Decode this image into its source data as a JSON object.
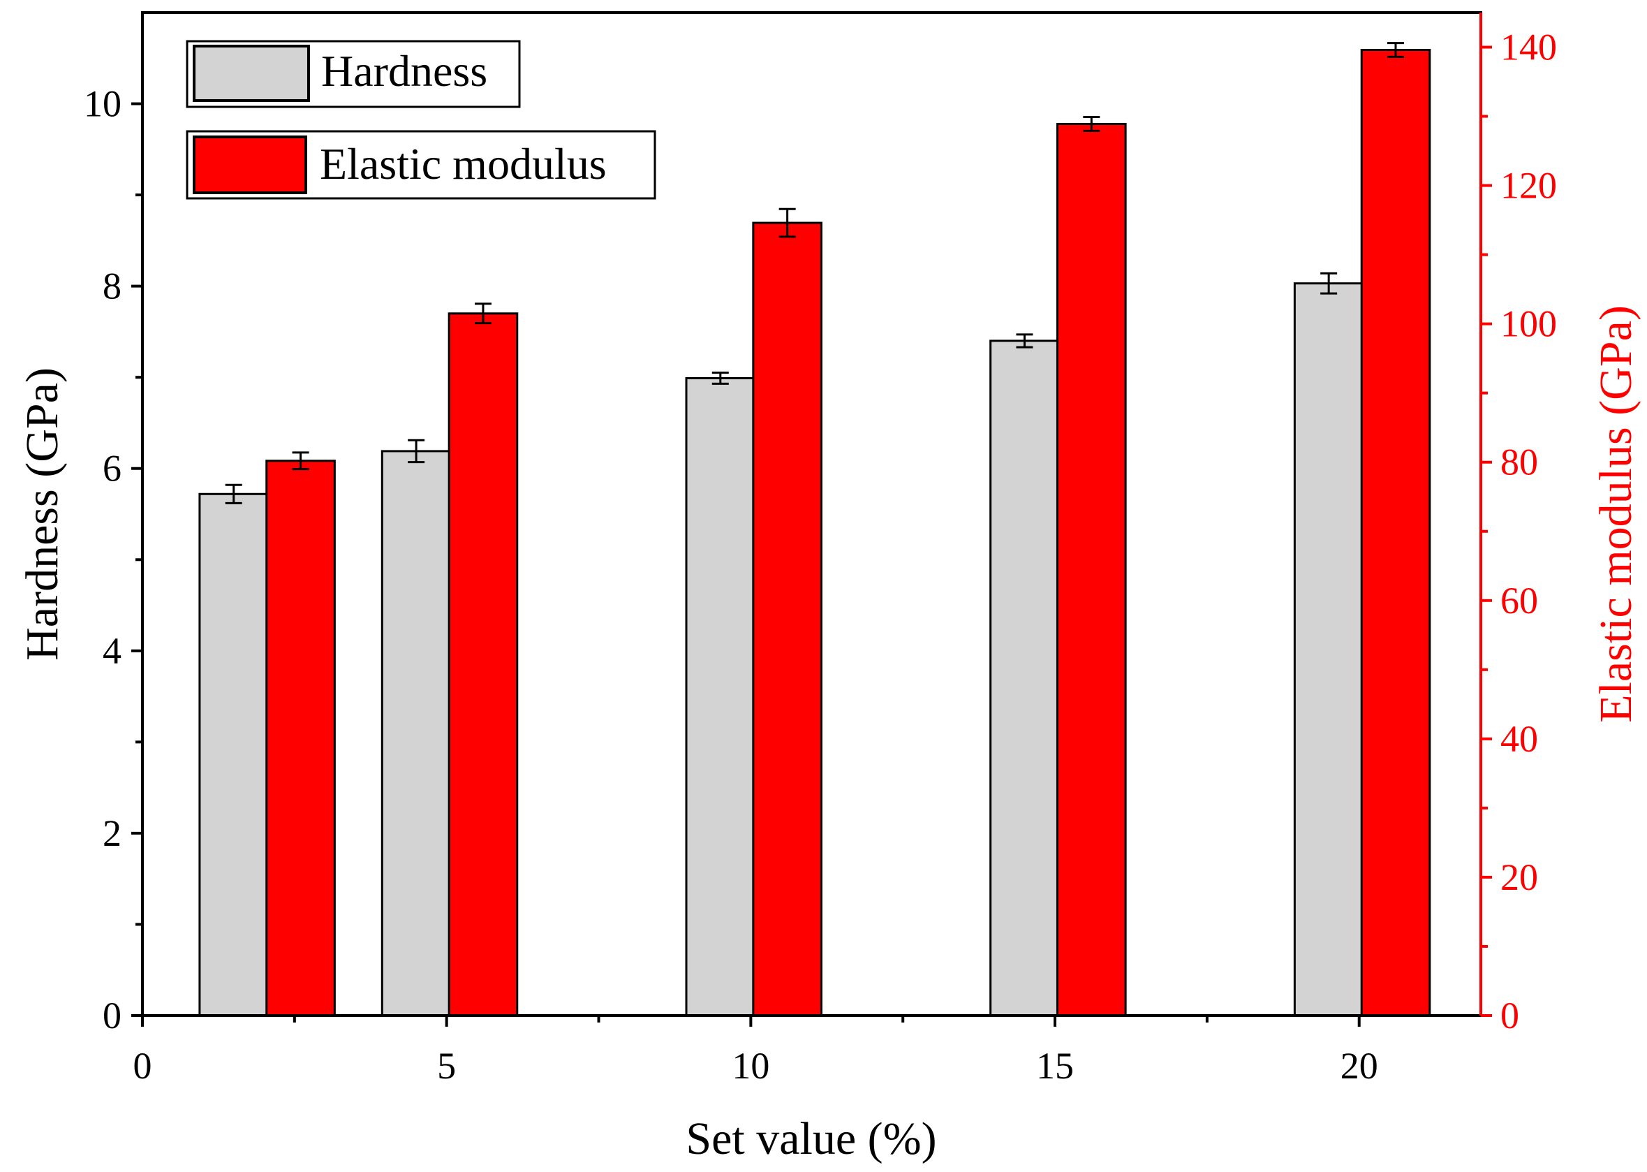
{
  "chart_data": {
    "type": "bar",
    "xlabel": "Set value (%)",
    "ylabel": "Hardness (GPa)",
    "y2label": "Elastic modulus (GPa)",
    "xlim": [
      0,
      22
    ],
    "ylim": [
      0,
      11
    ],
    "y2lim": [
      0,
      145
    ],
    "xticks": [
      0,
      5,
      10,
      15,
      20
    ],
    "yticks": [
      0,
      2,
      4,
      6,
      8,
      10
    ],
    "y2ticks": [
      0,
      20,
      40,
      60,
      80,
      100,
      120,
      140
    ],
    "grid": false,
    "legend_position": "top-left",
    "series": [
      {
        "name": "Hardness",
        "axis": "left",
        "color": "#d3d3d3",
        "x": [
          1.5,
          4.5,
          9.5,
          14.5,
          19.5
        ],
        "values": [
          5.72,
          6.19,
          6.99,
          7.4,
          8.03
        ],
        "errors": [
          0.1,
          0.12,
          0.06,
          0.07,
          0.11
        ]
      },
      {
        "name": "Elastic modulus",
        "axis": "right",
        "color": "#ff0000",
        "x": [
          2.6,
          5.6,
          10.6,
          15.6,
          20.6
        ],
        "values": [
          80.2,
          101.5,
          114.6,
          128.9,
          139.6
        ],
        "errors": [
          1.2,
          1.4,
          2.0,
          1.0,
          1.0
        ]
      }
    ]
  },
  "axis_colors": {
    "left": "#000000",
    "right": "#ff0000"
  }
}
